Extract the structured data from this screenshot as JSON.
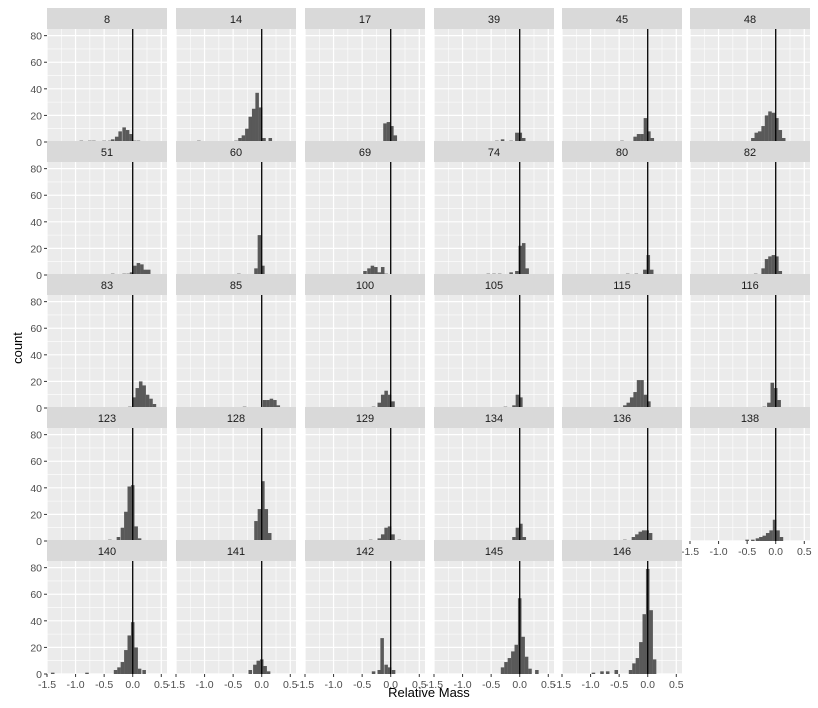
{
  "chart_data": {
    "type": "faceted-histogram",
    "xlabel": "Relative Mass",
    "ylabel": "count",
    "xlim": [
      -1.5,
      0.6
    ],
    "ylim": [
      0,
      85
    ],
    "x_ticks": [
      "-1.5",
      "-1.0",
      "-0.5",
      "0.0",
      "0.5"
    ],
    "y_ticks": [
      "0",
      "20",
      "40",
      "60",
      "80"
    ],
    "bin_width": 0.062,
    "reference_line_x": 0,
    "grid": true,
    "colors": {
      "bars": "#595959",
      "panel_background": "#ebebeb",
      "strip_background": "#d9d9d9",
      "grid": "#ffffff",
      "reference_line": "#000000"
    },
    "panels": [
      {
        "label": "8",
        "bars": [
          [
            -0.9,
            1
          ],
          [
            -0.75,
            1
          ],
          [
            -0.68,
            1
          ],
          [
            -0.5,
            1
          ],
          [
            -0.4,
            1
          ],
          [
            -0.35,
            2
          ],
          [
            -0.28,
            4
          ],
          [
            -0.22,
            8
          ],
          [
            -0.15,
            11
          ],
          [
            -0.09,
            9
          ],
          [
            -0.03,
            6
          ],
          [
            0.03,
            1
          ],
          [
            0.1,
            1
          ]
        ]
      },
      {
        "label": "14",
        "bars": [
          [
            -1.1,
            1
          ],
          [
            -0.45,
            1
          ],
          [
            -0.38,
            3
          ],
          [
            -0.32,
            5
          ],
          [
            -0.26,
            10
          ],
          [
            -0.2,
            19
          ],
          [
            -0.14,
            25
          ],
          [
            -0.08,
            37
          ],
          [
            -0.02,
            26
          ],
          [
            0.04,
            3
          ],
          [
            0.15,
            3
          ]
        ]
      },
      {
        "label": "17",
        "bars": [
          [
            -0.1,
            14
          ],
          [
            -0.04,
            15
          ],
          [
            0.02,
            12
          ],
          [
            0.08,
            5
          ]
        ]
      },
      {
        "label": "39",
        "bars": [
          [
            -0.4,
            1
          ],
          [
            -0.3,
            2
          ],
          [
            -0.15,
            1
          ],
          [
            -0.05,
            7
          ],
          [
            0.01,
            7
          ],
          [
            0.07,
            3
          ]
        ]
      },
      {
        "label": "45",
        "bars": [
          [
            -0.45,
            1
          ],
          [
            -0.22,
            4
          ],
          [
            -0.16,
            6
          ],
          [
            -0.1,
            6
          ],
          [
            -0.04,
            18
          ],
          [
            0.02,
            8
          ],
          [
            0.08,
            3
          ]
        ]
      },
      {
        "label": "48",
        "bars": [
          [
            -0.4,
            3
          ],
          [
            -0.34,
            7
          ],
          [
            -0.28,
            8
          ],
          [
            -0.22,
            12
          ],
          [
            -0.16,
            20
          ],
          [
            -0.1,
            23
          ],
          [
            -0.04,
            22
          ],
          [
            0.02,
            18
          ],
          [
            0.08,
            9
          ],
          [
            0.14,
            3
          ]
        ]
      },
      {
        "label": "51",
        "bars": [
          [
            -0.35,
            1
          ],
          [
            -0.15,
            1
          ],
          [
            -0.08,
            1
          ],
          [
            -0.02,
            2
          ],
          [
            0.04,
            7
          ],
          [
            0.1,
            9
          ],
          [
            0.16,
            8
          ],
          [
            0.22,
            4
          ],
          [
            0.28,
            4
          ]
        ]
      },
      {
        "label": "60",
        "bars": [
          [
            -0.4,
            1
          ],
          [
            -0.1,
            5
          ],
          [
            -0.04,
            30
          ],
          [
            0.02,
            7
          ]
        ]
      },
      {
        "label": "69",
        "bars": [
          [
            -0.45,
            3
          ],
          [
            -0.38,
            5
          ],
          [
            -0.32,
            7
          ],
          [
            -0.26,
            6
          ],
          [
            -0.2,
            2
          ],
          [
            -0.14,
            6
          ],
          [
            -0.08,
            1
          ]
        ]
      },
      {
        "label": "74",
        "bars": [
          [
            -0.55,
            1
          ],
          [
            -0.45,
            1
          ],
          [
            -0.35,
            1
          ],
          [
            -0.15,
            2
          ],
          [
            -0.05,
            3
          ],
          [
            0.01,
            22
          ],
          [
            0.07,
            24
          ],
          [
            0.13,
            5
          ]
        ]
      },
      {
        "label": "80",
        "bars": [
          [
            -0.35,
            1
          ],
          [
            -0.2,
            1
          ],
          [
            -0.05,
            4
          ],
          [
            0.01,
            15
          ],
          [
            0.07,
            4
          ]
        ]
      },
      {
        "label": "82",
        "bars": [
          [
            -0.35,
            1
          ],
          [
            -0.22,
            5
          ],
          [
            -0.16,
            12
          ],
          [
            -0.1,
            14
          ],
          [
            -0.04,
            15
          ],
          [
            0.02,
            14
          ],
          [
            0.08,
            3
          ]
        ]
      },
      {
        "label": "83",
        "bars": [
          [
            -0.05,
            1
          ],
          [
            0.02,
            8
          ],
          [
            0.08,
            15
          ],
          [
            0.14,
            20
          ],
          [
            0.2,
            17
          ],
          [
            0.26,
            10
          ],
          [
            0.32,
            7
          ],
          [
            0.38,
            3
          ]
        ]
      },
      {
        "label": "85",
        "bars": [
          [
            -0.3,
            1
          ],
          [
            0.05,
            6
          ],
          [
            0.11,
            6
          ],
          [
            0.17,
            7
          ],
          [
            0.23,
            6
          ],
          [
            0.29,
            2
          ]
        ]
      },
      {
        "label": "100",
        "bars": [
          [
            -0.3,
            1
          ],
          [
            -0.2,
            4
          ],
          [
            -0.14,
            10
          ],
          [
            -0.08,
            13
          ],
          [
            -0.02,
            10
          ],
          [
            0.04,
            5
          ]
        ]
      },
      {
        "label": "105",
        "bars": [
          [
            -0.25,
            1
          ],
          [
            -0.1,
            2
          ],
          [
            -0.04,
            10
          ],
          [
            0.02,
            8
          ]
        ]
      },
      {
        "label": "115",
        "bars": [
          [
            -0.4,
            2
          ],
          [
            -0.34,
            4
          ],
          [
            -0.28,
            8
          ],
          [
            -0.22,
            12
          ],
          [
            -0.16,
            21
          ],
          [
            -0.1,
            21
          ],
          [
            -0.04,
            10
          ],
          [
            0.02,
            5
          ]
        ]
      },
      {
        "label": "116",
        "bars": [
          [
            -0.2,
            1
          ],
          [
            -0.12,
            4
          ],
          [
            -0.06,
            19
          ],
          [
            0.0,
            15
          ],
          [
            0.06,
            6
          ]
        ]
      },
      {
        "label": "123",
        "bars": [
          [
            -0.4,
            1
          ],
          [
            -0.25,
            3
          ],
          [
            -0.18,
            10
          ],
          [
            -0.12,
            22
          ],
          [
            -0.06,
            41
          ],
          [
            0.0,
            42
          ],
          [
            0.06,
            11
          ],
          [
            0.12,
            2
          ]
        ]
      },
      {
        "label": "128",
        "bars": [
          [
            -0.1,
            15
          ],
          [
            -0.04,
            24
          ],
          [
            0.02,
            45
          ],
          [
            0.08,
            24
          ],
          [
            0.14,
            6
          ]
        ]
      },
      {
        "label": "129",
        "bars": [
          [
            -0.35,
            1
          ],
          [
            -0.2,
            2
          ],
          [
            -0.14,
            5
          ],
          [
            -0.08,
            10
          ],
          [
            -0.02,
            11
          ],
          [
            0.04,
            5
          ],
          [
            0.15,
            1
          ]
        ]
      },
      {
        "label": "134",
        "bars": [
          [
            -0.1,
            3
          ],
          [
            -0.04,
            10
          ],
          [
            0.02,
            13
          ],
          [
            0.08,
            3
          ]
        ]
      },
      {
        "label": "136",
        "bars": [
          [
            -0.4,
            1
          ],
          [
            -0.25,
            3
          ],
          [
            -0.19,
            5
          ],
          [
            -0.13,
            7
          ],
          [
            -0.07,
            8
          ],
          [
            -0.01,
            8
          ],
          [
            0.05,
            6
          ]
        ]
      },
      {
        "label": "138",
        "bars": [
          [
            -0.5,
            1
          ],
          [
            -0.4,
            1
          ],
          [
            -0.32,
            2
          ],
          [
            -0.26,
            3
          ],
          [
            -0.2,
            4
          ],
          [
            -0.14,
            6
          ],
          [
            -0.08,
            8
          ],
          [
            -0.02,
            16
          ],
          [
            0.04,
            8
          ],
          [
            0.1,
            3
          ]
        ]
      },
      {
        "label": "140",
        "bars": [
          [
            -1.4,
            1
          ],
          [
            -0.8,
            1
          ],
          [
            -0.3,
            3
          ],
          [
            -0.24,
            5
          ],
          [
            -0.18,
            9
          ],
          [
            -0.12,
            18
          ],
          [
            -0.06,
            29
          ],
          [
            0.0,
            39
          ],
          [
            0.06,
            20
          ],
          [
            0.12,
            4
          ],
          [
            0.2,
            3
          ]
        ]
      },
      {
        "label": "141",
        "bars": [
          [
            -0.2,
            3
          ],
          [
            -0.12,
            7
          ],
          [
            -0.06,
            10
          ],
          [
            0.0,
            11
          ],
          [
            0.06,
            6
          ],
          [
            0.12,
            2
          ]
        ]
      },
      {
        "label": "142",
        "bars": [
          [
            -0.3,
            2
          ],
          [
            -0.2,
            3
          ],
          [
            -0.15,
            27
          ],
          [
            -0.08,
            7
          ],
          [
            -0.02,
            5
          ],
          [
            0.05,
            3
          ]
        ]
      },
      {
        "label": "145",
        "bars": [
          [
            -0.3,
            5
          ],
          [
            -0.24,
            9
          ],
          [
            -0.18,
            12
          ],
          [
            -0.12,
            17
          ],
          [
            -0.06,
            22
          ],
          [
            0.0,
            57
          ],
          [
            0.06,
            28
          ],
          [
            0.12,
            13
          ],
          [
            0.18,
            4
          ],
          [
            0.3,
            3
          ]
        ]
      },
      {
        "label": "146",
        "bars": [
          [
            -0.95,
            1
          ],
          [
            -0.8,
            2
          ],
          [
            -0.7,
            2
          ],
          [
            -0.55,
            3
          ],
          [
            -0.3,
            3
          ],
          [
            -0.24,
            8
          ],
          [
            -0.18,
            12
          ],
          [
            -0.12,
            24
          ],
          [
            -0.06,
            45
          ],
          [
            0.0,
            79
          ],
          [
            0.06,
            48
          ],
          [
            0.12,
            11
          ]
        ]
      }
    ]
  }
}
